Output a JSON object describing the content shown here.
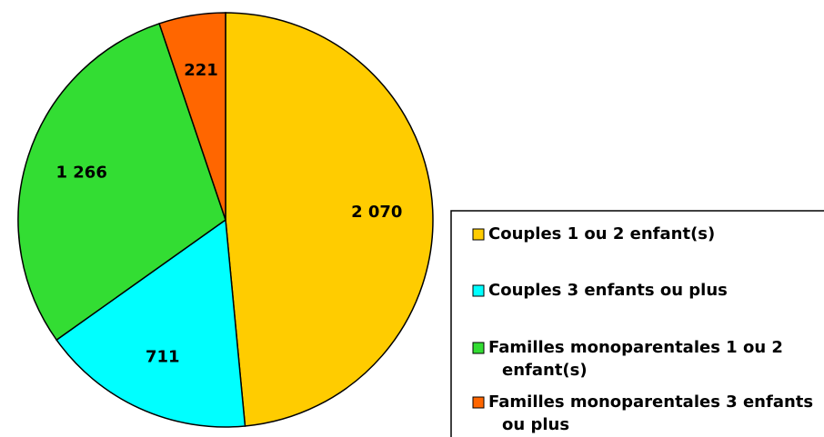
{
  "chart_data": {
    "type": "pie",
    "categories": [
      "Couples 1 ou 2 enfant(s)",
      "Couples 3 enfants ou plus",
      "Familles monoparentales 1 ou 2 enfant(s)",
      "Familles monoparentales 3 enfants ou plus"
    ],
    "values": [
      2070,
      711,
      1266,
      221
    ],
    "value_labels": [
      "2 070",
      "711",
      "1 266",
      "221"
    ],
    "colors": [
      "#ffcc00",
      "#00ffff",
      "#33dd33",
      "#ff6600"
    ],
    "legend": "right"
  }
}
